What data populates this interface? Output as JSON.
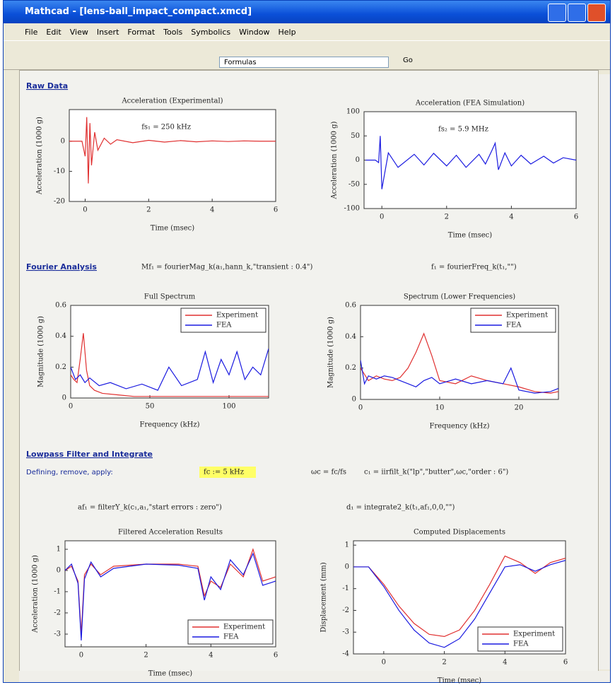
{
  "window": {
    "title": "Mathcad - [lens-ball_impact_compact.xmcd]",
    "menu": [
      "File",
      "Edit",
      "View",
      "Insert",
      "Format",
      "Tools",
      "Symbolics",
      "Window",
      "Help"
    ],
    "toolbar": {
      "style": "Formulas",
      "go": "Go"
    }
  },
  "sections": [
    {
      "heading": "Raw Data"
    },
    {
      "heading": "Fourier Analysis",
      "formulas": [
        "Mf₁ = fourierMag_k(a₁,hann_k,\"transient : 0.4\")",
        "f₁ = fourierFreq_k(t₁,\"\")"
      ]
    },
    {
      "heading": "Lowpass Filter and Integrate",
      "label": "Defining, remove, apply:",
      "highlight": "fc := 5 kHz",
      "formulas": [
        "ωc = fc/fs",
        "c₁ = iirfilt_k(\"lp\",\"butter\",ωc,\"order : 6\")",
        "af₁ = filterY_k(c₁,a₁,\"start errors : zero\")",
        "d₁ = integrate2_k(t₁,af₁,0,0,\"\")"
      ]
    }
  ],
  "plots": [
    {
      "title": "Acceleration (Experimental)",
      "xlabel": "Time (msec)",
      "ylabel": "Acceleration (1000 g)",
      "annotation": "fs₁ = 250 kHz",
      "xlim": [
        -0.5,
        6
      ],
      "ylim": [
        -20,
        10.5
      ],
      "xticks": [
        0,
        2,
        4,
        6
      ],
      "yticks": [
        0,
        -10,
        -20
      ],
      "series": [
        {
          "color": "#e03030",
          "x": [
            -0.5,
            -0.1,
            0,
            0.05,
            0.1,
            0.15,
            0.2,
            0.3,
            0.4,
            0.6,
            0.8,
            1,
            1.5,
            2,
            2.5,
            3,
            3.5,
            4,
            4.5,
            5,
            5.5,
            6
          ],
          "values": [
            0,
            0,
            -5,
            8,
            -14,
            6,
            -8,
            3,
            -3,
            1,
            -1,
            0.5,
            -0.5,
            0.3,
            -0.3,
            0.2,
            -0.2,
            0.1,
            -0.1,
            0.1,
            0,
            0
          ]
        }
      ]
    },
    {
      "title": "Acceleration (FEA Simulation)",
      "xlabel": "Time (msec)",
      "ylabel": "Acceleration (1000 g)",
      "annotation": "fs₂ = 5.9 MHz",
      "xlim": [
        -0.55,
        6
      ],
      "ylim": [
        -100,
        100
      ],
      "xticks": [
        0,
        2,
        4,
        6
      ],
      "yticks": [
        100,
        50,
        0,
        -50,
        -100
      ],
      "series": [
        {
          "color": "#1a1ae0",
          "x": [
            -0.5,
            -0.2,
            -0.1,
            -0.05,
            0,
            0.2,
            0.5,
            1,
            1.3,
            1.6,
            2,
            2.3,
            2.6,
            3,
            3.2,
            3.4,
            3.5,
            3.6,
            3.8,
            4,
            4.3,
            4.6,
            5,
            5.3,
            5.6,
            6
          ],
          "values": [
            0,
            0,
            -5,
            50,
            -60,
            15,
            -15,
            12,
            -10,
            14,
            -12,
            10,
            -15,
            12,
            -8,
            20,
            35,
            -20,
            15,
            -12,
            10,
            -8,
            8,
            -6,
            5,
            0
          ]
        }
      ]
    },
    {
      "title": "Full Spectrum",
      "xlabel": "Frequency (kHz)",
      "ylabel": "Magnitude (1000 g)",
      "legend": "upper right",
      "xlim": [
        0,
        125
      ],
      "ylim": [
        0,
        0.6
      ],
      "xticks": [
        0,
        50,
        100
      ],
      "yticks": [
        0.6,
        0.4,
        0.2,
        0
      ],
      "series": [
        {
          "name": "Experiment",
          "color": "#e03030",
          "x": [
            0,
            2,
            4,
            6,
            8,
            10,
            12,
            15,
            20,
            30,
            40,
            60,
            80,
            100,
            120,
            125
          ],
          "values": [
            0.15,
            0.12,
            0.1,
            0.25,
            0.42,
            0.18,
            0.08,
            0.05,
            0.03,
            0.02,
            0.01,
            0.01,
            0.01,
            0.01,
            0.01,
            0.01
          ]
        },
        {
          "name": "FEA",
          "color": "#1a1ae0",
          "x": [
            0,
            3,
            6,
            9,
            12,
            18,
            25,
            35,
            45,
            55,
            62,
            70,
            80,
            85,
            90,
            95,
            100,
            105,
            110,
            115,
            120,
            125
          ],
          "values": [
            0.2,
            0.12,
            0.15,
            0.1,
            0.13,
            0.08,
            0.1,
            0.06,
            0.09,
            0.05,
            0.2,
            0.08,
            0.12,
            0.3,
            0.1,
            0.25,
            0.15,
            0.3,
            0.12,
            0.2,
            0.15,
            0.32
          ]
        }
      ]
    },
    {
      "title": "Spectrum (Lower Frequencies)",
      "xlabel": "Frequency (kHz)",
      "ylabel": "Magnitude (1000 g)",
      "legend": "upper right",
      "xlim": [
        0,
        25
      ],
      "ylim": [
        0,
        0.6
      ],
      "xticks": [
        0,
        10,
        20
      ],
      "yticks": [
        0.6,
        0.4,
        0.2,
        0
      ],
      "series": [
        {
          "name": "Experiment",
          "color": "#e03030",
          "x": [
            0,
            1,
            2,
            3,
            4,
            5,
            6,
            7,
            8,
            9,
            10,
            12,
            14,
            16,
            18,
            20,
            22,
            24,
            25
          ],
          "values": [
            0.2,
            0.12,
            0.15,
            0.13,
            0.12,
            0.14,
            0.2,
            0.3,
            0.42,
            0.28,
            0.12,
            0.1,
            0.15,
            0.12,
            0.1,
            0.08,
            0.05,
            0.04,
            0.05
          ]
        },
        {
          "name": "FEA",
          "color": "#1a1ae0",
          "x": [
            0,
            0.5,
            1,
            2,
            3,
            4,
            5,
            6,
            7,
            8,
            9,
            10,
            12,
            14,
            16,
            18,
            19,
            20,
            22,
            24,
            25
          ],
          "values": [
            0.25,
            0.1,
            0.15,
            0.13,
            0.15,
            0.14,
            0.12,
            0.1,
            0.08,
            0.12,
            0.14,
            0.1,
            0.13,
            0.1,
            0.12,
            0.1,
            0.2,
            0.06,
            0.04,
            0.05,
            0.07
          ]
        }
      ]
    },
    {
      "title": "Filtered Acceleration Results",
      "xlabel": "Time (msec)",
      "ylabel": "Acceleration (1000 g)",
      "legend": "lower right",
      "xlim": [
        -0.5,
        6
      ],
      "ylim": [
        -3.6,
        1.4
      ],
      "xticks": [
        0,
        2,
        4,
        6
      ],
      "yticks": [
        1,
        0,
        -1,
        -2,
        -3
      ],
      "series": [
        {
          "name": "Experiment",
          "color": "#e03030",
          "x": [
            -0.5,
            -0.3,
            -0.1,
            0,
            0.1,
            0.3,
            0.6,
            1,
            2,
            3,
            3.6,
            3.8,
            4,
            4.3,
            4.6,
            5,
            5.3,
            5.6,
            6
          ],
          "values": [
            0,
            0.2,
            -0.5,
            -3,
            -0.2,
            0.3,
            -0.2,
            0.2,
            0.3,
            0.3,
            0.2,
            -1.2,
            -0.5,
            -0.8,
            0.3,
            -0.3,
            1,
            -0.5,
            -0.3
          ]
        },
        {
          "name": "FEA",
          "color": "#1a1ae0",
          "x": [
            -0.5,
            -0.3,
            -0.1,
            0,
            0.1,
            0.3,
            0.6,
            1,
            2,
            3,
            3.6,
            3.8,
            4,
            4.3,
            4.6,
            5,
            5.3,
            5.6,
            6
          ],
          "values": [
            0,
            0.3,
            -0.6,
            -3.3,
            -0.4,
            0.4,
            -0.3,
            0.1,
            0.3,
            0.25,
            0.1,
            -1.4,
            -0.3,
            -0.9,
            0.5,
            -0.2,
            0.8,
            -0.7,
            -0.5
          ]
        }
      ]
    },
    {
      "title": "Computed Displacements",
      "xlabel": "Time (msec)",
      "ylabel": "Displacement (mm)",
      "legend": "lower right",
      "xlim": [
        -1,
        6
      ],
      "ylim": [
        -4,
        1.2
      ],
      "xticks": [
        0,
        2,
        4,
        6
      ],
      "yticks": [
        1,
        0,
        -1,
        -2,
        -3,
        -4
      ],
      "series": [
        {
          "name": "Experiment",
          "color": "#e03030",
          "x": [
            -1,
            -0.5,
            0,
            0.5,
            1,
            1.5,
            2,
            2.5,
            3,
            3.5,
            4,
            4.5,
            5,
            5.5,
            6
          ],
          "values": [
            0,
            0,
            -0.8,
            -1.8,
            -2.6,
            -3.1,
            -3.2,
            -2.9,
            -2.0,
            -0.8,
            0.5,
            0.2,
            -0.3,
            0.2,
            0.4
          ]
        },
        {
          "name": "FEA",
          "color": "#1a1ae0",
          "x": [
            -1,
            -0.5,
            0,
            0.5,
            1,
            1.5,
            2,
            2.5,
            3,
            3.5,
            4,
            4.5,
            5,
            5.5,
            6
          ],
          "values": [
            0,
            0,
            -0.9,
            -2.0,
            -2.9,
            -3.5,
            -3.7,
            -3.3,
            -2.4,
            -1.2,
            0.0,
            0.1,
            -0.2,
            0.1,
            0.3
          ]
        }
      ]
    }
  ]
}
